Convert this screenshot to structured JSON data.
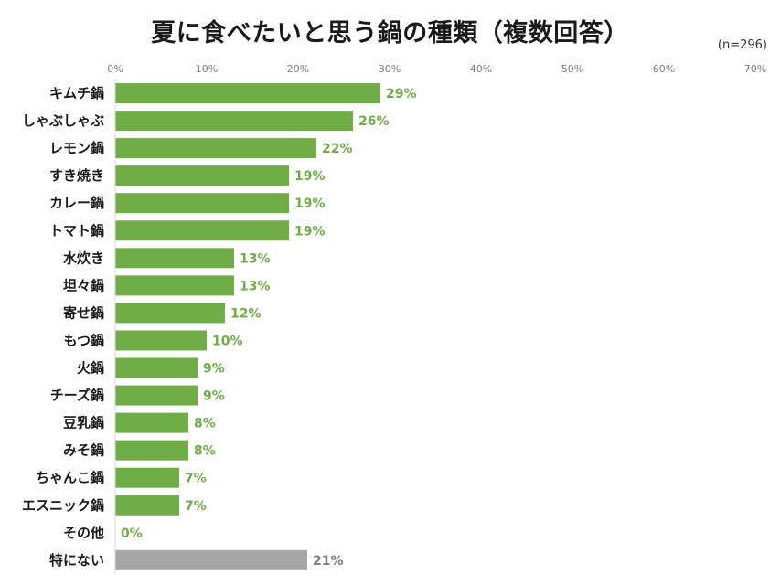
{
  "chart_data": {
    "type": "bar",
    "orientation": "horizontal",
    "title": "夏に食べたいと思う鍋の種類（複数回答）",
    "note": "(n=296)",
    "xlim": [
      0,
      70
    ],
    "ticks": [
      0,
      10,
      20,
      30,
      40,
      50,
      60,
      70
    ],
    "tick_labels": [
      "0%",
      "10%",
      "20%",
      "30%",
      "40%",
      "50%",
      "60%",
      "70%"
    ],
    "tick_position": "top",
    "grid": false,
    "categories": [
      "キムチ鍋",
      "しゃぶしゃぶ",
      "レモン鍋",
      "すき焼き",
      "カレー鍋",
      "トマト鍋",
      "水炊き",
      "坦々鍋",
      "寄せ鍋",
      "もつ鍋",
      "火鍋",
      "チーズ鍋",
      "豆乳鍋",
      "みそ鍋",
      "ちゃんこ鍋",
      "エスニック鍋",
      "その他",
      "特にない"
    ],
    "values": [
      29,
      26,
      22,
      19,
      19,
      19,
      13,
      13,
      12,
      10,
      9,
      9,
      8,
      8,
      7,
      7,
      0,
      21
    ],
    "data_labels": [
      "29%",
      "26%",
      "22%",
      "19%",
      "19%",
      "19%",
      "13%",
      "13%",
      "12%",
      "10%",
      "9%",
      "9%",
      "8%",
      "8%",
      "7%",
      "7%",
      "0%",
      "21%"
    ],
    "colors": {
      "bar": "#70ad47",
      "bar_last": "#a6a6a6",
      "label": "#70ad47",
      "label_last": "#7f7f7f"
    }
  }
}
